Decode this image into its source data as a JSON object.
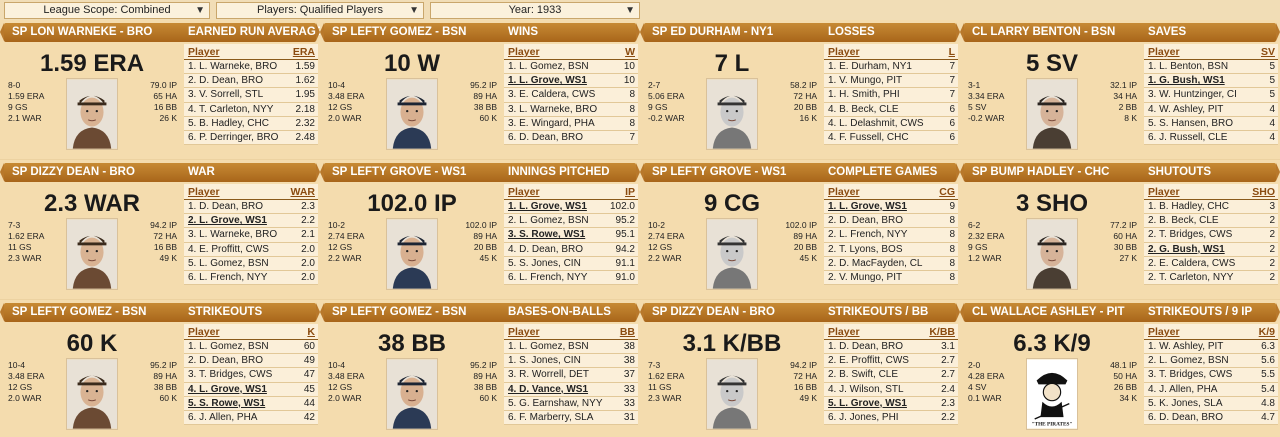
{
  "filters": {
    "league_scope": "League Scope: Combined",
    "players": "Players: Qualified Players",
    "year": "Year: 1933"
  },
  "panels": [
    {
      "name": "SP LON WARNEKE - BRO",
      "category": "EARNED RUN AVERAGE",
      "big": "1.59 ERA",
      "stats_left": [
        "8-0",
        "1.59 ERA",
        "9 GS",
        "2.1 WAR"
      ],
      "stats_right": [
        "79.0 IP",
        "65 HA",
        "16 BB",
        "26 K"
      ],
      "col_player": "Player",
      "col_stat": "ERA",
      "rows": [
        {
          "player": "1. L. Warneke, BRO",
          "value": "1.59"
        },
        {
          "player": "2. D. Dean, BRO",
          "value": "1.62"
        },
        {
          "player": "3. V. Sorrell, STL",
          "value": "1.95"
        },
        {
          "player": "4. T. Carleton, NYY",
          "value": "2.18"
        },
        {
          "player": "5. B. Hadley, CHC",
          "value": "2.32"
        },
        {
          "player": "6. P. Derringer, BRO",
          "value": "2.48"
        }
      ],
      "highlight": -1,
      "photo": "player-photo-warneke"
    },
    {
      "name": "SP LEFTY GOMEZ - BSN",
      "category": "WINS",
      "big": "10 W",
      "stats_left": [
        "10-4",
        "3.48 ERA",
        "12 GS",
        "2.0 WAR"
      ],
      "stats_right": [
        "95.2 IP",
        "89 HA",
        "38 BB",
        "60 K"
      ],
      "col_player": "Player",
      "col_stat": "W",
      "rows": [
        {
          "player": "1. L. Gomez, BSN",
          "value": "10"
        },
        {
          "player": "1. L. Grove, WS1",
          "value": "10"
        },
        {
          "player": "3. E. Caldera, CWS",
          "value": "8"
        },
        {
          "player": "3. L. Warneke, BRO",
          "value": "8"
        },
        {
          "player": "3. E. Wingard, PHA",
          "value": "8"
        },
        {
          "player": "6. D. Dean, BRO",
          "value": "7"
        }
      ],
      "highlight": 1,
      "photo": "player-photo-gomez"
    },
    {
      "name": "SP ED DURHAM - NY1",
      "category": "LOSSES",
      "big": "7 L",
      "stats_left": [
        "2-7",
        "5.06 ERA",
        "9 GS",
        "-0.2 WAR"
      ],
      "stats_right": [
        "58.2 IP",
        "72 HA",
        "20 BB",
        "16 K"
      ],
      "col_player": "Player",
      "col_stat": "L",
      "rows": [
        {
          "player": "1. E. Durham, NY1",
          "value": "7"
        },
        {
          "player": "1. V. Mungo, PIT",
          "value": "7"
        },
        {
          "player": "1. H. Smith, PHI",
          "value": "7"
        },
        {
          "player": "4. B. Beck, CLE",
          "value": "6"
        },
        {
          "player": "4. L. Delashmit, CWS",
          "value": "6"
        },
        {
          "player": "4. F. Fussell, CHC",
          "value": "6"
        }
      ],
      "highlight": -1,
      "photo": "player-photo-durham"
    },
    {
      "name": "CL LARRY BENTON - BSN",
      "category": "SAVES",
      "big": "5 SV",
      "stats_left": [
        "3-1",
        "3.34 ERA",
        "5 SV",
        "-0.2 WAR"
      ],
      "stats_right": [
        "32.1 IP",
        "34 HA",
        "2 BB",
        "8 K"
      ],
      "col_player": "Player",
      "col_stat": "SV",
      "rows": [
        {
          "player": "1. L. Benton, BSN",
          "value": "5"
        },
        {
          "player": "1. G. Bush, WS1",
          "value": "5"
        },
        {
          "player": "3. W. Huntzinger, CI",
          "value": "5"
        },
        {
          "player": "4. W. Ashley, PIT",
          "value": "4"
        },
        {
          "player": "5. S. Hansen, BRO",
          "value": "4"
        },
        {
          "player": "6. J. Russell, CLE",
          "value": "4"
        }
      ],
      "highlight": 1,
      "photo": "player-photo-benton"
    },
    {
      "name": "SP DIZZY DEAN - BRO",
      "category": "WAR",
      "big": "2.3 WAR",
      "stats_left": [
        "7-3",
        "1.62 ERA",
        "11 GS",
        "2.3 WAR"
      ],
      "stats_right": [
        "94.2 IP",
        "72 HA",
        "16 BB",
        "49 K"
      ],
      "col_player": "Player",
      "col_stat": "WAR",
      "rows": [
        {
          "player": "1. D. Dean, BRO",
          "value": "2.3"
        },
        {
          "player": "2. L. Grove, WS1",
          "value": "2.2"
        },
        {
          "player": "3. L. Warneke, BRO",
          "value": "2.1"
        },
        {
          "player": "4. E. Proffitt, CWS",
          "value": "2.0"
        },
        {
          "player": "5. L. Gomez, BSN",
          "value": "2.0"
        },
        {
          "player": "6. L. French, NYY",
          "value": "2.0"
        }
      ],
      "highlight": 1,
      "photo": "player-photo-dean"
    },
    {
      "name": "SP LEFTY GROVE - WS1",
      "category": "INNINGS PITCHED",
      "big": "102.0 IP",
      "stats_left": [
        "10-2",
        "2.74 ERA",
        "12 GS",
        "2.2 WAR"
      ],
      "stats_right": [
        "102.0 IP",
        "89 HA",
        "20 BB",
        "45 K"
      ],
      "col_player": "Player",
      "col_stat": "IP",
      "rows": [
        {
          "player": "1. L. Grove, WS1",
          "value": "102.0"
        },
        {
          "player": "2. L. Gomez, BSN",
          "value": "95.2"
        },
        {
          "player": "3. S. Rowe, WS1",
          "value": "95.1"
        },
        {
          "player": "4. D. Dean, BRO",
          "value": "94.2"
        },
        {
          "player": "5. S. Jones, CIN",
          "value": "91.1"
        },
        {
          "player": "6. L. French, NYY",
          "value": "91.0"
        }
      ],
      "highlight": 0,
      "highlight2": 2,
      "photo": "player-photo-grove"
    },
    {
      "name": "SP LEFTY GROVE - WS1",
      "category": "COMPLETE GAMES",
      "big": "9 CG",
      "stats_left": [
        "10-2",
        "2.74 ERA",
        "12 GS",
        "2.2 WAR"
      ],
      "stats_right": [
        "102.0 IP",
        "89 HA",
        "20 BB",
        "45 K"
      ],
      "col_player": "Player",
      "col_stat": "CG",
      "rows": [
        {
          "player": "1. L. Grove, WS1",
          "value": "9"
        },
        {
          "player": "2. D. Dean, BRO",
          "value": "8"
        },
        {
          "player": "2. L. French, NYY",
          "value": "8"
        },
        {
          "player": "2. T. Lyons, BOS",
          "value": "8"
        },
        {
          "player": "2. D. MacFayden, CL",
          "value": "8"
        },
        {
          "player": "2. V. Mungo, PIT",
          "value": "8"
        }
      ],
      "highlight": 0,
      "photo": "player-photo-grove2"
    },
    {
      "name": "SP BUMP HADLEY - CHC",
      "category": "SHUTOUTS",
      "big": "3 SHO",
      "stats_left": [
        "6-2",
        "2.32 ERA",
        "9 GS",
        "1.2 WAR"
      ],
      "stats_right": [
        "77.2 IP",
        "60 HA",
        "30 BB",
        "27 K"
      ],
      "col_player": "Player",
      "col_stat": "SHO",
      "rows": [
        {
          "player": "1. B. Hadley, CHC",
          "value": "3"
        },
        {
          "player": "2. B. Beck, CLE",
          "value": "2"
        },
        {
          "player": "2. T. Bridges, CWS",
          "value": "2"
        },
        {
          "player": "2. G. Bush, WS1",
          "value": "2"
        },
        {
          "player": "2. E. Caldera, CWS",
          "value": "2"
        },
        {
          "player": "2. T. Carleton, NYY",
          "value": "2"
        }
      ],
      "highlight": 3,
      "photo": "player-photo-hadley"
    },
    {
      "name": "SP LEFTY GOMEZ - BSN",
      "category": "STRIKEOUTS",
      "big": "60 K",
      "stats_left": [
        "10-4",
        "3.48 ERA",
        "12 GS",
        "2.0 WAR"
      ],
      "stats_right": [
        "95.2 IP",
        "89 HA",
        "38 BB",
        "60 K"
      ],
      "col_player": "Player",
      "col_stat": "K",
      "rows": [
        {
          "player": "1. L. Gomez, BSN",
          "value": "60"
        },
        {
          "player": "2. D. Dean, BRO",
          "value": "49"
        },
        {
          "player": "3. T. Bridges, CWS",
          "value": "47"
        },
        {
          "player": "4. L. Grove, WS1",
          "value": "45"
        },
        {
          "player": "5. S. Rowe, WS1",
          "value": "44"
        },
        {
          "player": "6. J. Allen, PHA",
          "value": "42"
        }
      ],
      "highlight": 3,
      "highlight2": 4,
      "photo": "player-photo-gomez2"
    },
    {
      "name": "SP LEFTY GOMEZ - BSN",
      "category": "BASES-ON-BALLS",
      "big": "38 BB",
      "stats_left": [
        "10-4",
        "3.48 ERA",
        "12 GS",
        "2.0 WAR"
      ],
      "stats_right": [
        "95.2 IP",
        "89 HA",
        "38 BB",
        "60 K"
      ],
      "col_player": "Player",
      "col_stat": "BB",
      "rows": [
        {
          "player": "1. L. Gomez, BSN",
          "value": "38"
        },
        {
          "player": "1. S. Jones, CIN",
          "value": "38"
        },
        {
          "player": "3. R. Worrell, DET",
          "value": "37"
        },
        {
          "player": "4. D. Vance, WS1",
          "value": "33"
        },
        {
          "player": "5. G. Earnshaw, NYY",
          "value": "33"
        },
        {
          "player": "6. F. Marberry, SLA",
          "value": "31"
        }
      ],
      "highlight": 3,
      "photo": "player-photo-gomez3"
    },
    {
      "name": "SP DIZZY DEAN - BRO",
      "category": "STRIKEOUTS / BB",
      "big": "3.1 K/BB",
      "stats_left": [
        "7-3",
        "1.62 ERA",
        "11 GS",
        "2.3 WAR"
      ],
      "stats_right": [
        "94.2 IP",
        "72 HA",
        "16 BB",
        "49 K"
      ],
      "col_player": "Player",
      "col_stat": "K/BB",
      "rows": [
        {
          "player": "1. D. Dean, BRO",
          "value": "3.1"
        },
        {
          "player": "2. E. Proffitt, CWS",
          "value": "2.7"
        },
        {
          "player": "2. B. Swift, CLE",
          "value": "2.7"
        },
        {
          "player": "4. J. Wilson, STL",
          "value": "2.4"
        },
        {
          "player": "5. L. Grove, WS1",
          "value": "2.3"
        },
        {
          "player": "6. J. Jones, PHI",
          "value": "2.2"
        }
      ],
      "highlight": 4,
      "photo": "player-photo-dean2"
    },
    {
      "name": "CL WALLACE ASHLEY - PIT",
      "category": "STRIKEOUTS / 9 IP",
      "big": "6.3 K/9",
      "stats_left": [
        "2-0",
        "4.28 ERA",
        "4 SV",
        "0.1 WAR"
      ],
      "stats_right": [
        "48.1 IP",
        "50 HA",
        "26 BB",
        "34 K"
      ],
      "col_player": "Player",
      "col_stat": "K/9",
      "rows": [
        {
          "player": "1. W. Ashley, PIT",
          "value": "6.3"
        },
        {
          "player": "2. L. Gomez, BSN",
          "value": "5.6"
        },
        {
          "player": "3. T. Bridges, CWS",
          "value": "5.5"
        },
        {
          "player": "4. J. Allen, PHA",
          "value": "5.4"
        },
        {
          "player": "5. K. Jones, SLA",
          "value": "4.8"
        },
        {
          "player": "6. D. Dean, BRO",
          "value": "4.7"
        }
      ],
      "highlight": -1,
      "photo": "team-logo-pirates",
      "logo_text": "\"THE PIRATES\""
    }
  ]
}
